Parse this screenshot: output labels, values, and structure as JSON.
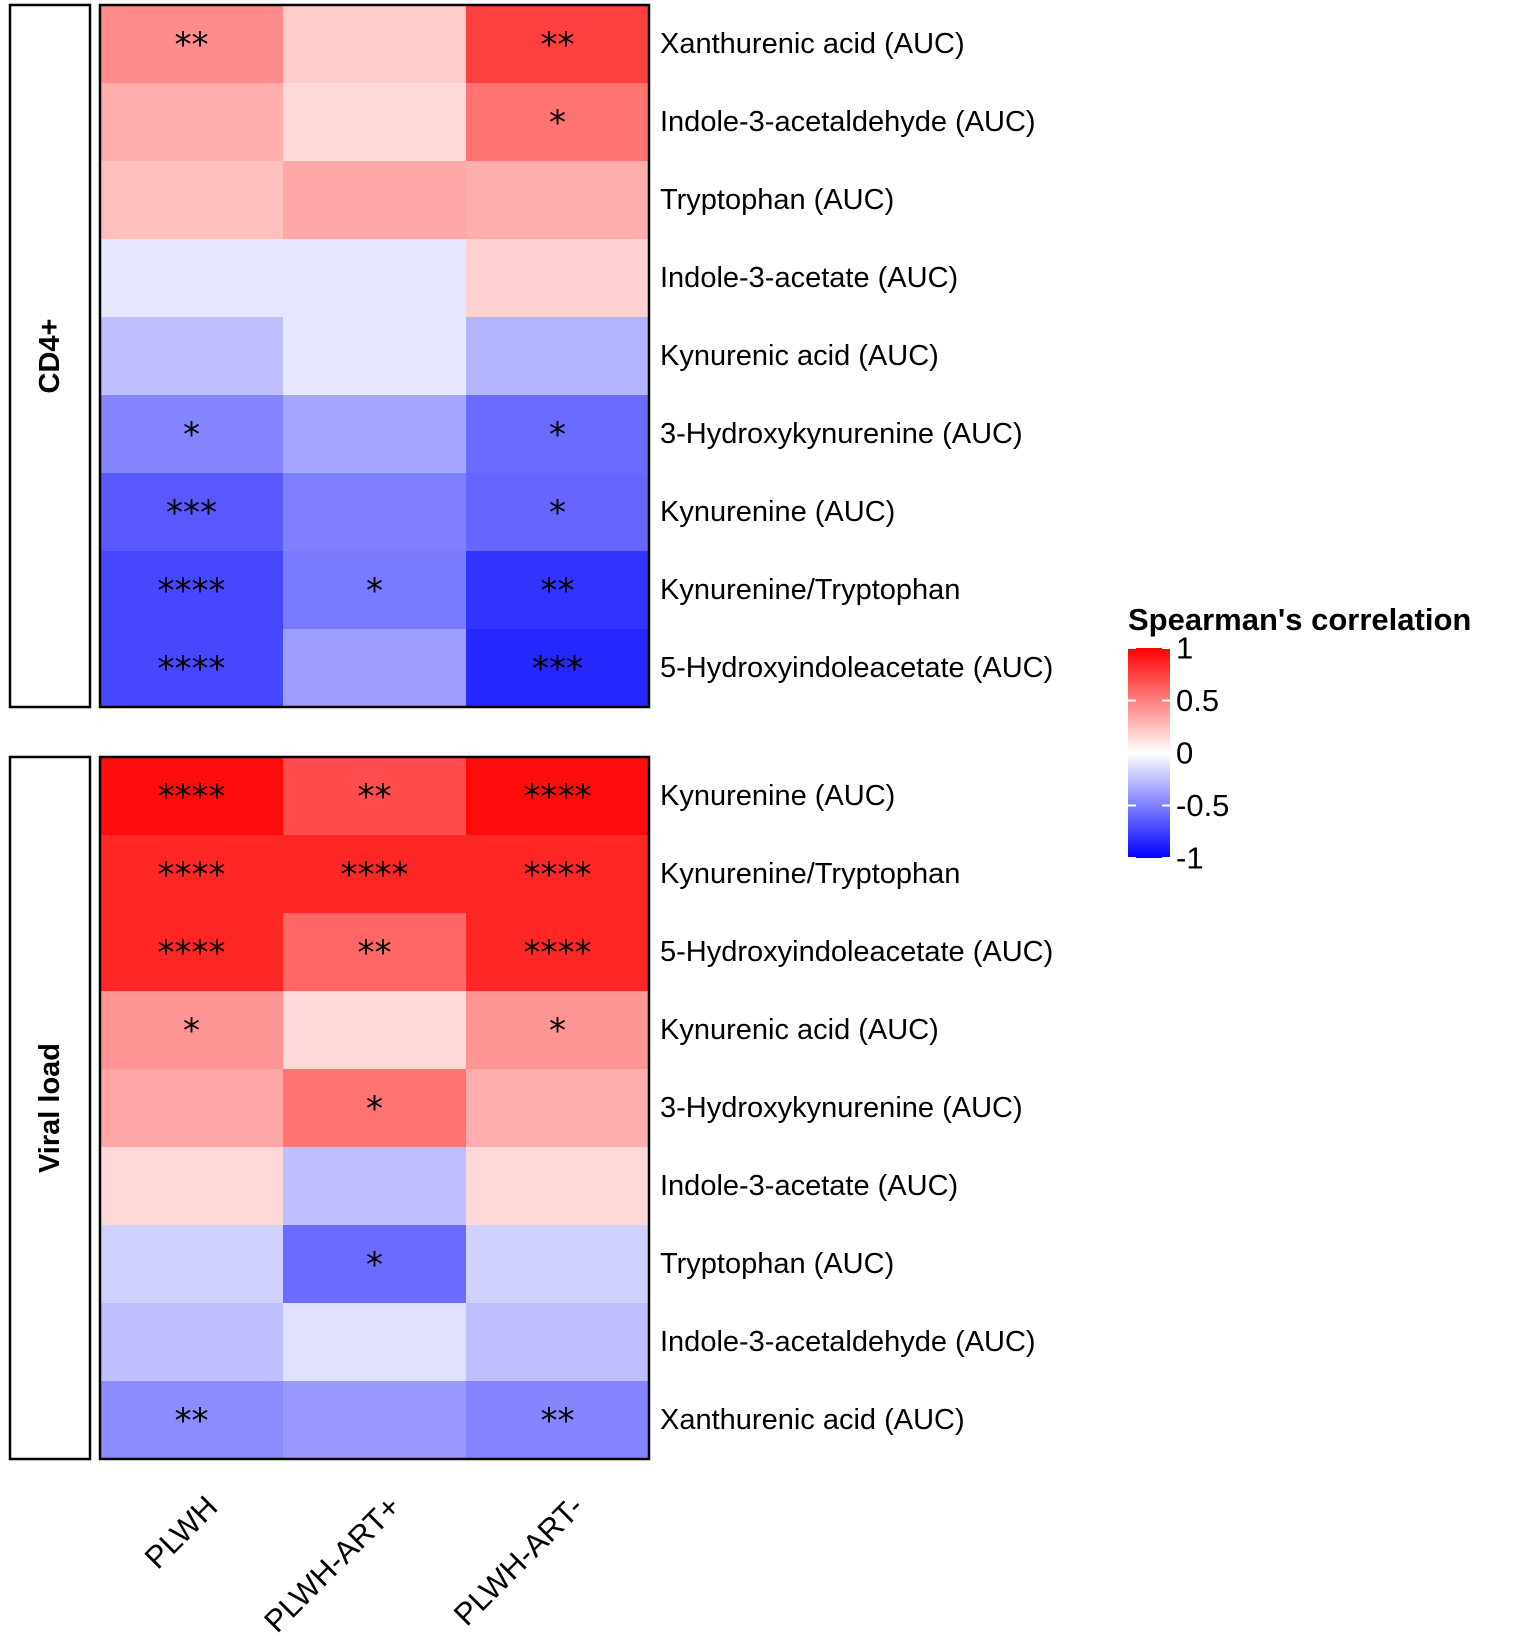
{
  "chart_data": {
    "type": "heatmap",
    "columns": [
      "PLWH",
      "PLWH-ART+",
      "PLWH-ART-"
    ],
    "color_scale": {
      "low": "#0000ff",
      "mid": "#ffffff",
      "high": "#ff0000",
      "limits": [
        -1,
        1
      ]
    },
    "legend": {
      "title": "Spearman's correlation",
      "placement": "right",
      "ticks": [
        1,
        0.5,
        0,
        -0.5,
        -1
      ],
      "tick_labels": [
        "1",
        "0.5",
        "0",
        "-0.5",
        "-1"
      ]
    },
    "facets": [
      {
        "label": "CD4+",
        "rows": [
          {
            "label": "Xanthurenic acid (AUC)",
            "values": [
              0.45,
              0.2,
              0.75
            ],
            "sig": [
              "**",
              "",
              "**"
            ]
          },
          {
            "label": "Indole-3-acetaldehyde (AUC)",
            "values": [
              0.32,
              0.15,
              0.55
            ],
            "sig": [
              "",
              "",
              "*"
            ]
          },
          {
            "label": "Tryptophan (AUC)",
            "values": [
              0.25,
              0.35,
              0.32
            ],
            "sig": [
              "",
              "",
              ""
            ]
          },
          {
            "label": "Indole-3-acetate (AUC)",
            "values": [
              -0.1,
              -0.1,
              0.18
            ],
            "sig": [
              "",
              "",
              ""
            ]
          },
          {
            "label": "Kynurenic acid (AUC)",
            "values": [
              -0.25,
              -0.1,
              -0.3
            ],
            "sig": [
              "",
              "",
              ""
            ]
          },
          {
            "label": "3-Hydroxykynurenine (AUC)",
            "values": [
              -0.48,
              -0.35,
              -0.58
            ],
            "sig": [
              "*",
              "",
              "*"
            ]
          },
          {
            "label": "Kynurenine (AUC)",
            "values": [
              -0.65,
              -0.5,
              -0.6
            ],
            "sig": [
              "***",
              "",
              "*"
            ]
          },
          {
            "label": "Kynurenine/Tryptophan",
            "values": [
              -0.72,
              -0.52,
              -0.8
            ],
            "sig": [
              "****",
              "*",
              "**"
            ]
          },
          {
            "label": "5-Hydroxyindoleacetate (AUC)",
            "values": [
              -0.72,
              -0.38,
              -0.85
            ],
            "sig": [
              "****",
              "",
              "***"
            ]
          }
        ]
      },
      {
        "label": "Viral load",
        "rows": [
          {
            "label": "Kynurenine (AUC)",
            "values": [
              0.95,
              0.7,
              0.95
            ],
            "sig": [
              "****",
              "**",
              "****"
            ]
          },
          {
            "label": "Kynurenine/Tryptophan",
            "values": [
              0.85,
              0.85,
              0.85
            ],
            "sig": [
              "****",
              "****",
              "****"
            ]
          },
          {
            "label": "5-Hydroxyindoleacetate (AUC)",
            "values": [
              0.85,
              0.6,
              0.85
            ],
            "sig": [
              "****",
              "**",
              "****"
            ]
          },
          {
            "label": "Kynurenic acid (AUC)",
            "values": [
              0.42,
              0.15,
              0.42
            ],
            "sig": [
              "*",
              "",
              "*"
            ]
          },
          {
            "label": "3-Hydroxykynurenine (AUC)",
            "values": [
              0.35,
              0.55,
              0.32
            ],
            "sig": [
              "",
              "*",
              ""
            ]
          },
          {
            "label": "Indole-3-acetate (AUC)",
            "values": [
              0.15,
              -0.25,
              0.15
            ],
            "sig": [
              "",
              "",
              ""
            ]
          },
          {
            "label": "Tryptophan (AUC)",
            "values": [
              -0.18,
              -0.58,
              -0.18
            ],
            "sig": [
              "",
              "*",
              ""
            ]
          },
          {
            "label": "Indole-3-acetaldehyde (AUC)",
            "values": [
              -0.25,
              -0.12,
              -0.25
            ],
            "sig": [
              "",
              "",
              ""
            ]
          },
          {
            "label": "Xanthurenic acid (AUC)",
            "values": [
              -0.45,
              -0.4,
              -0.48
            ],
            "sig": [
              "**",
              "",
              "**"
            ]
          }
        ]
      }
    ]
  }
}
